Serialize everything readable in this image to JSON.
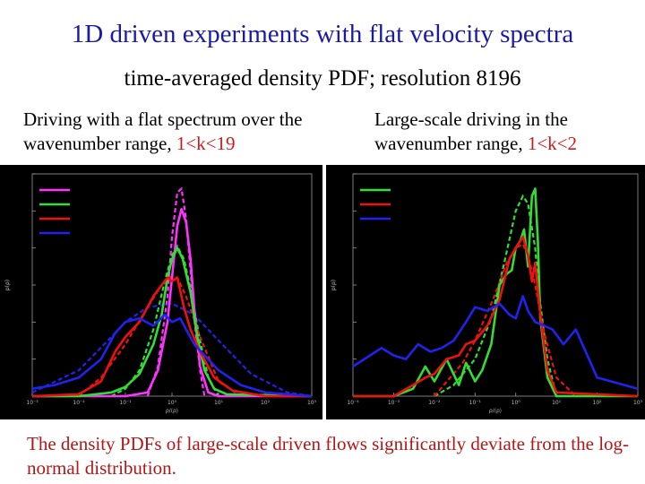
{
  "slide": {
    "title": "1D driven experiments with flat velocity spectra",
    "subtitle": "time-averaged density PDF; resolution 8196",
    "left_caption_text": "Driving with a flat spectrum over the wavenumber range, ",
    "left_caption_range": "1<k<19",
    "right_caption_text": "Large-scale driving in the wavenumber range, ",
    "right_caption_range": "1<k<2",
    "bottom_note": "The density PDFs of large-scale driven flows significantly deviate from the log-normal distribution."
  },
  "colors": {
    "title": "#1a1aa6",
    "accent_red": "#cc1a1a",
    "magenta": "#ff33ff",
    "green": "#33dd33",
    "red": "#ee1111",
    "blue": "#2222ee"
  },
  "chart_data": [
    {
      "type": "line",
      "name": "left-panel",
      "x_scale": "log",
      "xlim": [
        0.001,
        1000
      ],
      "ylim": [
        -5,
        1
      ],
      "x_ticks": [
        0.001,
        0.01,
        0.1,
        1,
        10,
        100,
        1000
      ],
      "x_tick_labels": [
        "10⁻³",
        "10⁻²",
        "10⁻¹",
        "10⁰",
        "10¹",
        "10²",
        "10³"
      ],
      "y_ticks": [
        -5,
        -4,
        -3,
        -2,
        -1,
        0,
        1
      ],
      "xlabel": "ρ/⟨ρ⟩",
      "ylabel": "p(ρ)",
      "series": [
        {
          "color": "magenta",
          "x": [
            0.001,
            0.1,
            0.3,
            0.5,
            0.8,
            1.0,
            1.3,
            1.6,
            2.0,
            2.5,
            3.0,
            4.0,
            6.0,
            10.0,
            1000
          ],
          "y": [
            -5,
            -5,
            -4.9,
            -4.3,
            -3.0,
            -1.8,
            -0.4,
            0.05,
            -0.3,
            -1.3,
            -2.6,
            -4.2,
            -4.9,
            -5,
            -5
          ]
        },
        {
          "color": "green",
          "x": [
            0.001,
            0.01,
            0.05,
            0.1,
            0.2,
            0.4,
            0.6,
            0.8,
            1.0,
            1.3,
            1.7,
            2.5,
            3.5,
            5.0,
            8.0,
            15.0,
            1000
          ],
          "y": [
            -5,
            -5,
            -4.9,
            -4.75,
            -4.4,
            -3.6,
            -2.8,
            -1.8,
            -1.3,
            -1.0,
            -1.3,
            -2.2,
            -3.4,
            -4.3,
            -4.8,
            -4.95,
            -5
          ]
        },
        {
          "color": "red",
          "x": [
            0.001,
            0.01,
            0.03,
            0.06,
            0.1,
            0.2,
            0.4,
            0.6,
            0.8,
            1.0,
            1.3,
            1.8,
            2.5,
            4.0,
            8.0,
            20.0,
            100.0,
            1000
          ],
          "y": [
            -5,
            -4.95,
            -4.6,
            -3.8,
            -3.4,
            -3.0,
            -2.3,
            -2.0,
            -1.8,
            -1.9,
            -1.8,
            -2.6,
            -3.2,
            -3.8,
            -4.5,
            -4.85,
            -5,
            -5
          ]
        },
        {
          "color": "blue",
          "x": [
            0.001,
            0.003,
            0.01,
            0.03,
            0.06,
            0.1,
            0.2,
            0.4,
            0.7,
            1.0,
            1.5,
            2.0,
            3.0,
            5.0,
            10.0,
            30.0,
            100.0,
            1000
          ],
          "y": [
            -4.8,
            -4.7,
            -4.5,
            -4.0,
            -3.3,
            -3.0,
            -2.9,
            -3.1,
            -2.8,
            -3.0,
            -2.9,
            -3.2,
            -3.6,
            -3.9,
            -4.3,
            -4.7,
            -4.9,
            -5
          ]
        }
      ],
      "fit_series": [
        {
          "color": "magenta",
          "x": [
            0.3,
            0.5,
            0.8,
            1.0,
            1.3,
            1.6,
            2.0,
            2.5,
            3.0,
            4.0,
            5.0
          ],
          "y": [
            -5,
            -4.2,
            -2.3,
            -0.7,
            0.5,
            0.6,
            -0.2,
            -1.6,
            -2.9,
            -4.3,
            -5
          ]
        },
        {
          "color": "green",
          "x": [
            0.05,
            0.1,
            0.2,
            0.4,
            0.7,
            1.0,
            1.3,
            1.8,
            2.5,
            4.0,
            6.0,
            10.0
          ],
          "y": [
            -5,
            -4.8,
            -4.3,
            -3.2,
            -1.9,
            -1.2,
            -0.95,
            -1.3,
            -2.1,
            -3.5,
            -4.5,
            -5
          ]
        },
        {
          "color": "red",
          "x": [
            0.01,
            0.03,
            0.1,
            0.3,
            0.6,
            1.0,
            1.3,
            2.0,
            4.0,
            10.0,
            30.0
          ],
          "y": [
            -5,
            -4.5,
            -3.6,
            -2.6,
            -2.0,
            -1.75,
            -1.8,
            -2.3,
            -3.4,
            -4.6,
            -5
          ]
        },
        {
          "color": "blue",
          "x": [
            0.001,
            0.01,
            0.05,
            0.1,
            0.3,
            1.0,
            3.0,
            10.0,
            50.0,
            300.0,
            1000
          ],
          "y": [
            -4.9,
            -4.3,
            -3.4,
            -3.0,
            -2.6,
            -2.5,
            -2.8,
            -3.5,
            -4.4,
            -4.9,
            -5
          ]
        }
      ]
    },
    {
      "type": "line",
      "name": "right-panel",
      "x_scale": "log",
      "xlim": [
        0.0001,
        1000
      ],
      "ylim": [
        -5,
        1
      ],
      "x_ticks": [
        0.0001,
        0.001,
        0.01,
        0.1,
        1,
        10,
        100,
        1000
      ],
      "x_tick_labels": [
        "10⁻⁴",
        "10⁻³",
        "10⁻²",
        "10⁻¹",
        "10⁰",
        "10¹",
        "10²",
        "10³"
      ],
      "y_ticks": [
        -5,
        -4,
        -3,
        -2,
        -1,
        0,
        1
      ],
      "xlabel": "ρ/⟨ρ⟩",
      "ylabel": "p(ρ)",
      "series": [
        {
          "color": "green",
          "x": [
            0.0001,
            0.001,
            0.003,
            0.006,
            0.01,
            0.02,
            0.04,
            0.06,
            0.1,
            0.15,
            0.25,
            0.4,
            0.6,
            0.8,
            1.0,
            1.3,
            1.6,
            2.0,
            2.5,
            3.0,
            3.5,
            4.0,
            6.0,
            10.0,
            1000
          ],
          "y": [
            -5,
            -5,
            -4.8,
            -4.2,
            -4.6,
            -4.0,
            -4.7,
            -4.1,
            -4.6,
            -4.3,
            -3.6,
            -2.0,
            -1.7,
            -1.6,
            -1.0,
            -0.8,
            -0.5,
            -1.5,
            0.4,
            0.6,
            -0.8,
            -2.9,
            -4.5,
            -5,
            -5
          ]
        },
        {
          "color": "red",
          "x": [
            0.0001,
            0.001,
            0.003,
            0.006,
            0.01,
            0.02,
            0.04,
            0.06,
            0.1,
            0.2,
            0.4,
            0.7,
            1.0,
            1.5,
            2.0,
            2.5,
            3.0,
            4.0,
            6.0,
            10.0,
            1000
          ],
          "y": [
            -5,
            -5,
            -4.7,
            -4.5,
            -4.4,
            -4.0,
            -3.9,
            -3.6,
            -3.5,
            -3.1,
            -2.4,
            -1.3,
            -1.0,
            -0.7,
            -1.2,
            -1.9,
            -1.4,
            -2.8,
            -4.3,
            -4.9,
            -5
          ]
        },
        {
          "color": "blue",
          "x": [
            0.0001,
            0.0005,
            0.001,
            0.002,
            0.004,
            0.008,
            0.015,
            0.03,
            0.06,
            0.1,
            0.2,
            0.4,
            0.7,
            1.0,
            1.5,
            2.0,
            3.0,
            5.0,
            8.0,
            15.0,
            30.0,
            100.0,
            1000
          ],
          "y": [
            -4.2,
            -3.7,
            -3.9,
            -4.0,
            -3.6,
            -3.8,
            -3.7,
            -3.5,
            -3.0,
            -2.6,
            -2.7,
            -2.5,
            -2.8,
            -2.9,
            -2.3,
            -2.7,
            -3.0,
            -3.1,
            -3.2,
            -3.6,
            -3.2,
            -4.5,
            -4.8
          ]
        }
      ],
      "fit_series": [
        {
          "color": "green",
          "x": [
            0.01,
            0.03,
            0.1,
            0.25,
            0.5,
            1.0,
            1.5,
            2.0,
            3.0,
            4.0,
            6.0,
            10.0
          ],
          "y": [
            -5,
            -4.7,
            -4.0,
            -2.9,
            -1.5,
            0.0,
            0.4,
            0.2,
            -1.0,
            -2.5,
            -4.0,
            -5
          ]
        },
        {
          "color": "red",
          "x": [
            0.01,
            0.05,
            0.1,
            0.3,
            0.6,
            1.0,
            1.5,
            2.0,
            3.0,
            5.0,
            10.0,
            30.0
          ],
          "y": [
            -5,
            -4.1,
            -3.5,
            -2.3,
            -1.4,
            -1.0,
            -0.9,
            -1.2,
            -2.0,
            -3.3,
            -4.5,
            -5
          ]
        }
      ]
    }
  ]
}
